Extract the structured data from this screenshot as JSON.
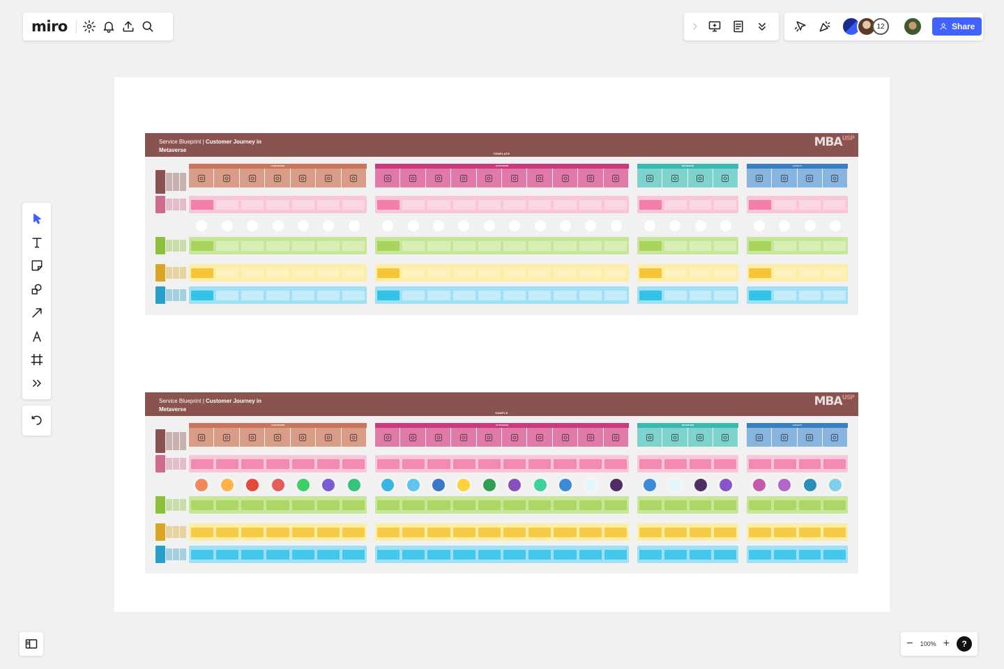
{
  "app": {
    "logo": "miro"
  },
  "topbar": {
    "share_label": "Share",
    "collab_count": "12"
  },
  "zoom": {
    "level": "100%",
    "minus": "−",
    "plus": "+",
    "help": "?"
  },
  "boards": [
    {
      "title_prefix": "Service Blueprint | ",
      "title_bold": "Customer Journey in",
      "title_line2": "Metaverse",
      "subtitle": "TEMPLATE",
      "logo": "MBA",
      "logo_sup": "USP"
    },
    {
      "title_prefix": "Service Blueprint | ",
      "title_bold": "Customer Journey in",
      "title_line2": "Metaverse",
      "subtitle": "SAMPLE",
      "logo": "MBA",
      "logo_sup": "USP"
    }
  ],
  "sections": [
    {
      "name": "ACQUISITION",
      "color": "#c9775a",
      "cell": "#d99c86",
      "count": 7
    },
    {
      "name": "ACTIVATION",
      "color": "#c83c7e",
      "cell": "#e27aa9",
      "count": 10
    },
    {
      "name": "RETENTION",
      "color": "#3cb8b4",
      "cell": "#7fd3cf",
      "count": 4
    },
    {
      "name": "LOYALTY",
      "color": "#3a7dc0",
      "cell": "#88b4e0",
      "count": 4
    }
  ],
  "colors": {
    "accent": "#4262ff",
    "header": "#8a5350"
  }
}
